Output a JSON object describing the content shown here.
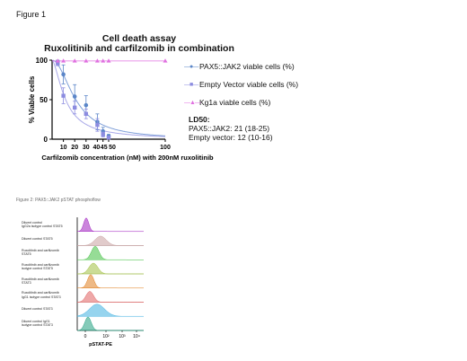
{
  "figure1": {
    "label": "Figure 1",
    "title_line1": "Cell death assay",
    "title_line2": "Ruxolitinib and carfilzomib in combination",
    "legend_markers": [
      "●",
      "■",
      "▲"
    ],
    "ld50_header": "LD50:",
    "ld50_lines": [
      "PAX5::JAK2: 21 (18-25)",
      "Empty vector: 12 (10-16)"
    ]
  },
  "figure2": {
    "caption": "Figure 2: PAX5::JAK2 pSTAT phosphoflow",
    "row_labels": [
      "Diluent control\nIgG2a isotype control STAT5",
      "Diluent control STAT5",
      "Ruxolitinib and carfilzomib\nSTAT5",
      "Ruxolitinib and carfilzomib\nisotype control STAT5",
      "Ruxolitinib and carfilzomib\nSTAT3",
      "Ruxolitinib and carfilzomib\nIgG1 isotype control STAT3",
      "Diluent control STAT3",
      "Diluent control IgG1\nisotype control STAT3"
    ],
    "xlabel": "pSTAT-PE",
    "x_ticks": [
      "0",
      "10²",
      "10³",
      "10⁴"
    ],
    "histogram_colors": [
      "#a020c0",
      "#c8a0a0",
      "#40c040",
      "#a0c040",
      "#e08020",
      "#e06060",
      "#40b0e0",
      "#20a080"
    ]
  },
  "chart_data": {
    "type": "scatter",
    "title": "Cell death assay\nRuxolitinib and carfilzomib in combination",
    "xlabel": "Carfilzomib concentration (nM) with 200nM ruxolitinib",
    "ylabel": "% Viable cells",
    "xlim": [
      0,
      100
    ],
    "ylim": [
      0,
      100
    ],
    "x_tick_labels": [
      "10",
      "20",
      "30",
      "40",
      "45",
      "50",
      "100"
    ],
    "y_ticks": [
      0,
      50,
      100
    ],
    "legend_position": "right",
    "series": [
      {
        "name": "PAX5::JAK2 viable cells (%)",
        "color": "#5b86c8",
        "marker": "circle",
        "x": [
          5,
          10,
          20,
          30,
          40,
          45,
          50
        ],
        "y": [
          98,
          82,
          54,
          43,
          22,
          10,
          4
        ],
        "err": [
          2,
          12,
          15,
          12,
          10,
          5,
          2
        ]
      },
      {
        "name": "Empty Vector viable cells (%)",
        "color": "#8c8ce0",
        "marker": "square",
        "x": [
          5,
          10,
          20,
          30,
          40,
          45,
          50
        ],
        "y": [
          96,
          55,
          40,
          32,
          18,
          6,
          2
        ],
        "err": [
          3,
          10,
          8,
          6,
          8,
          3,
          1
        ]
      },
      {
        "name": "Kg1a viable cells (%)",
        "color": "#e070e0",
        "marker": "triangle",
        "x": [
          5,
          10,
          20,
          30,
          40,
          45,
          50,
          100
        ],
        "y": [
          99,
          99,
          99,
          99,
          99,
          99,
          99,
          99
        ]
      }
    ],
    "fit_curves": [
      {
        "name": "PAX5::JAK2 fit",
        "color": "#7f9fd8",
        "ld50": 21,
        "hill": 2.0
      },
      {
        "name": "Empty vector fit",
        "color": "#a8a8e8",
        "ld50": 12,
        "hill": 1.6
      }
    ]
  }
}
